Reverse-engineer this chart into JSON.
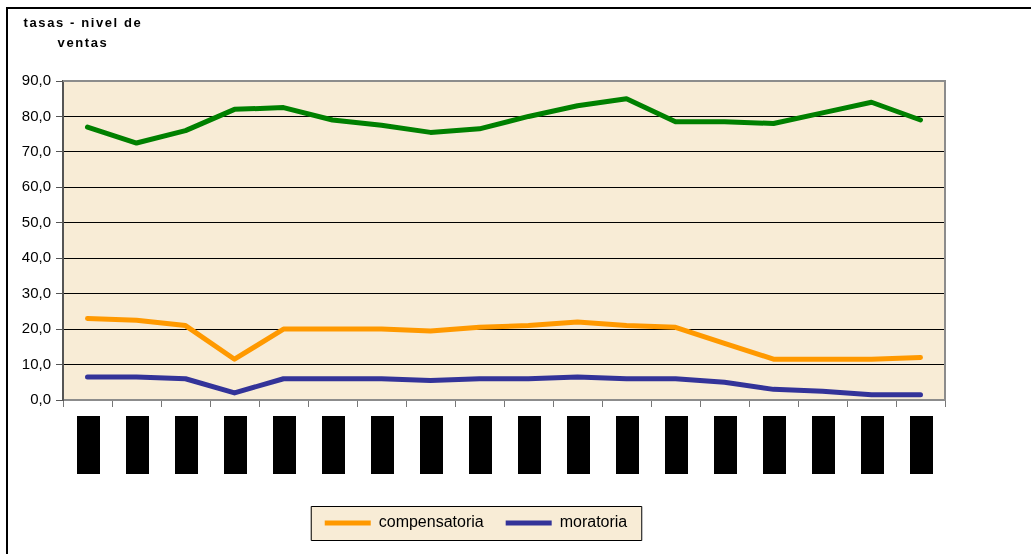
{
  "chart_data": {
    "type": "line",
    "ylabel": "tasas - nivel de ventas",
    "categories": [
      null,
      null,
      null,
      null,
      null,
      null,
      null,
      null,
      null,
      null,
      null,
      null,
      null,
      null,
      null,
      null,
      null,
      null
    ],
    "series": [
      {
        "name": "compensatoria",
        "color": "#ff9900",
        "values": [
          23,
          22.5,
          21,
          11.5,
          20,
          20,
          20,
          19.5,
          20.5,
          21,
          22,
          21,
          20.5,
          16,
          11.5,
          11.5,
          11.5,
          12
        ]
      },
      {
        "name": "moratoria",
        "color": "#333399",
        "values": [
          6.5,
          6.5,
          6,
          2,
          6,
          6,
          6,
          5.5,
          6,
          6,
          6.5,
          6,
          6,
          5,
          3,
          2.5,
          1.5,
          1.5
        ]
      },
      {
        "color": "#008000",
        "values": [
          77,
          72.5,
          76,
          82,
          82.5,
          79,
          77.5,
          75.5,
          76.5,
          80,
          83,
          85,
          78.5,
          78.5,
          78,
          81,
          84,
          79
        ]
      }
    ],
    "ylim": [
      0,
      90
    ],
    "yticks": [
      {
        "value": 0,
        "label": "0,0"
      },
      {
        "value": 10,
        "label": "10,0"
      },
      {
        "value": 20,
        "label": "20,0"
      },
      {
        "value": 30,
        "label": "30,0"
      },
      {
        "value": 40,
        "label": "40,0"
      },
      {
        "value": 50,
        "label": "50,0"
      },
      {
        "value": 60,
        "label": "60,0"
      },
      {
        "value": 70,
        "label": "70,0"
      },
      {
        "value": 80,
        "label": "80,0"
      },
      {
        "value": 90,
        "label": "90,0"
      }
    ],
    "grid": "y",
    "legend": "bottom",
    "marker": "none"
  }
}
